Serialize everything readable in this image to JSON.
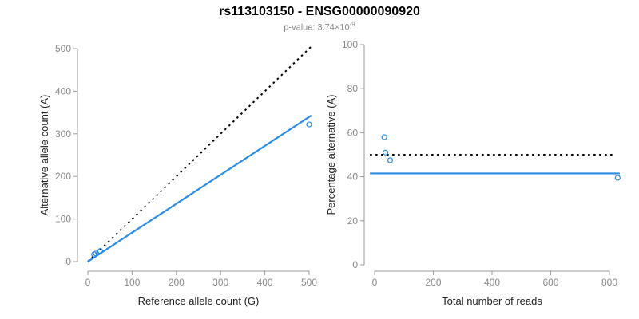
{
  "header": {
    "title": "rs113103150 - ENSG00000090920",
    "pvalue_prefix": "p-value: 3.74×10",
    "pvalue_exponent": "-9"
  },
  "colors": {
    "accent_blue": "#2b8ce4",
    "line_black": "#000000",
    "axis_line": "#999999",
    "tick_label": "#8a8a8a",
    "axis_title": "#222222",
    "subtitle_gray": "#8a8a8a",
    "background": "#ffffff"
  },
  "chart_data": [
    {
      "id": "allele-count-scatter",
      "type": "scatter",
      "title": "",
      "xlabel": "Reference allele count (G)",
      "ylabel": "Alternative allele count (A)",
      "xlim": [
        0,
        505
      ],
      "ylim": [
        0,
        505
      ],
      "xticks": [
        0,
        100,
        200,
        300,
        400,
        500
      ],
      "yticks": [
        0,
        100,
        200,
        300,
        400,
        500
      ],
      "grid": false,
      "point_style": "open-circle",
      "points": [
        [
          14,
          17
        ],
        [
          18,
          19
        ],
        [
          28,
          25
        ],
        [
          500,
          322
        ]
      ],
      "lines": [
        {
          "name": "identity",
          "style": "dotted",
          "color": "#000000",
          "from": [
            0,
            0
          ],
          "to": [
            505,
            505
          ]
        },
        {
          "name": "fit",
          "style": "solid",
          "color": "#2b8ce4",
          "from": [
            0,
            0
          ],
          "to": [
            505,
            343
          ]
        }
      ]
    },
    {
      "id": "percentage-vs-reads-scatter",
      "type": "scatter",
      "title": "",
      "xlabel": "Total number of reads",
      "ylabel": "Percentage alternative (A)",
      "xlim": [
        -16,
        840
      ],
      "ylim": [
        0,
        100
      ],
      "xticks": [
        0,
        200,
        400,
        600,
        800
      ],
      "yticks": [
        0,
        20,
        40,
        60,
        80,
        100
      ],
      "grid": false,
      "point_style": "open-circle",
      "points": [
        [
          33,
          58
        ],
        [
          37,
          51
        ],
        [
          53,
          47.5
        ],
        [
          828,
          39.5
        ]
      ],
      "lines": [
        {
          "name": "null-expectation",
          "style": "dotted",
          "color": "#000000",
          "from": [
            -16,
            50
          ],
          "to": [
            816,
            50
          ]
        },
        {
          "name": "fit",
          "style": "solid",
          "color": "#2b8ce4",
          "from": [
            -16,
            41.5
          ],
          "to": [
            835,
            41.5
          ]
        }
      ]
    }
  ]
}
